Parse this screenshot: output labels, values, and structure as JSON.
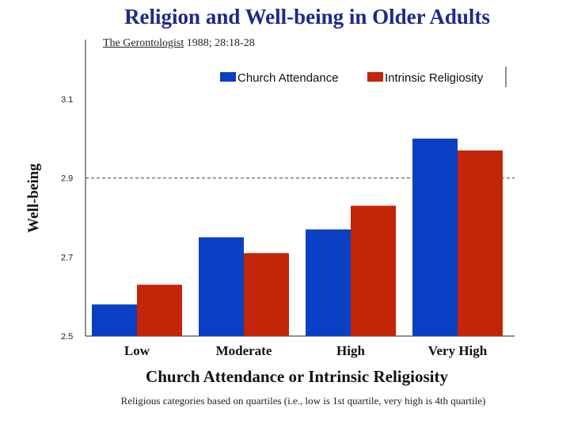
{
  "colors": {
    "church": "#0a3fc4",
    "intrinsic": "#c22508",
    "title": "#1c2a8a"
  },
  "header": {
    "title": "Religion and Well-being in Older Adults",
    "journal": "The Gerontologist",
    "citation_rest": " 1988; 28:18-28"
  },
  "footnote": "Religious categories based on quartiles (i.e., low is 1st quartile, very high is 4th quartile)",
  "chart_data": {
    "type": "bar",
    "title": "Religion and Well-being in Older Adults",
    "xlabel": "Church Attendance or Intrinsic Religiosity",
    "ylabel": "Well-being",
    "categories": [
      "Low",
      "Moderate",
      "High",
      "Very High"
    ],
    "series": [
      {
        "name": "Church Attendance",
        "values": [
          2.58,
          2.75,
          2.77,
          3.0
        ]
      },
      {
        "name": "Intrinsic Religiosity",
        "values": [
          2.63,
          2.71,
          2.83,
          2.97
        ]
      }
    ],
    "ylim": [
      2.5,
      3.1
    ],
    "yticks": [
      "2.5",
      "2.7",
      "2.9",
      "3.1"
    ],
    "ytick_values": [
      2.5,
      2.7,
      2.9,
      3.1
    ],
    "reference_line": 2.9,
    "grid": false,
    "legend": "top-right"
  }
}
